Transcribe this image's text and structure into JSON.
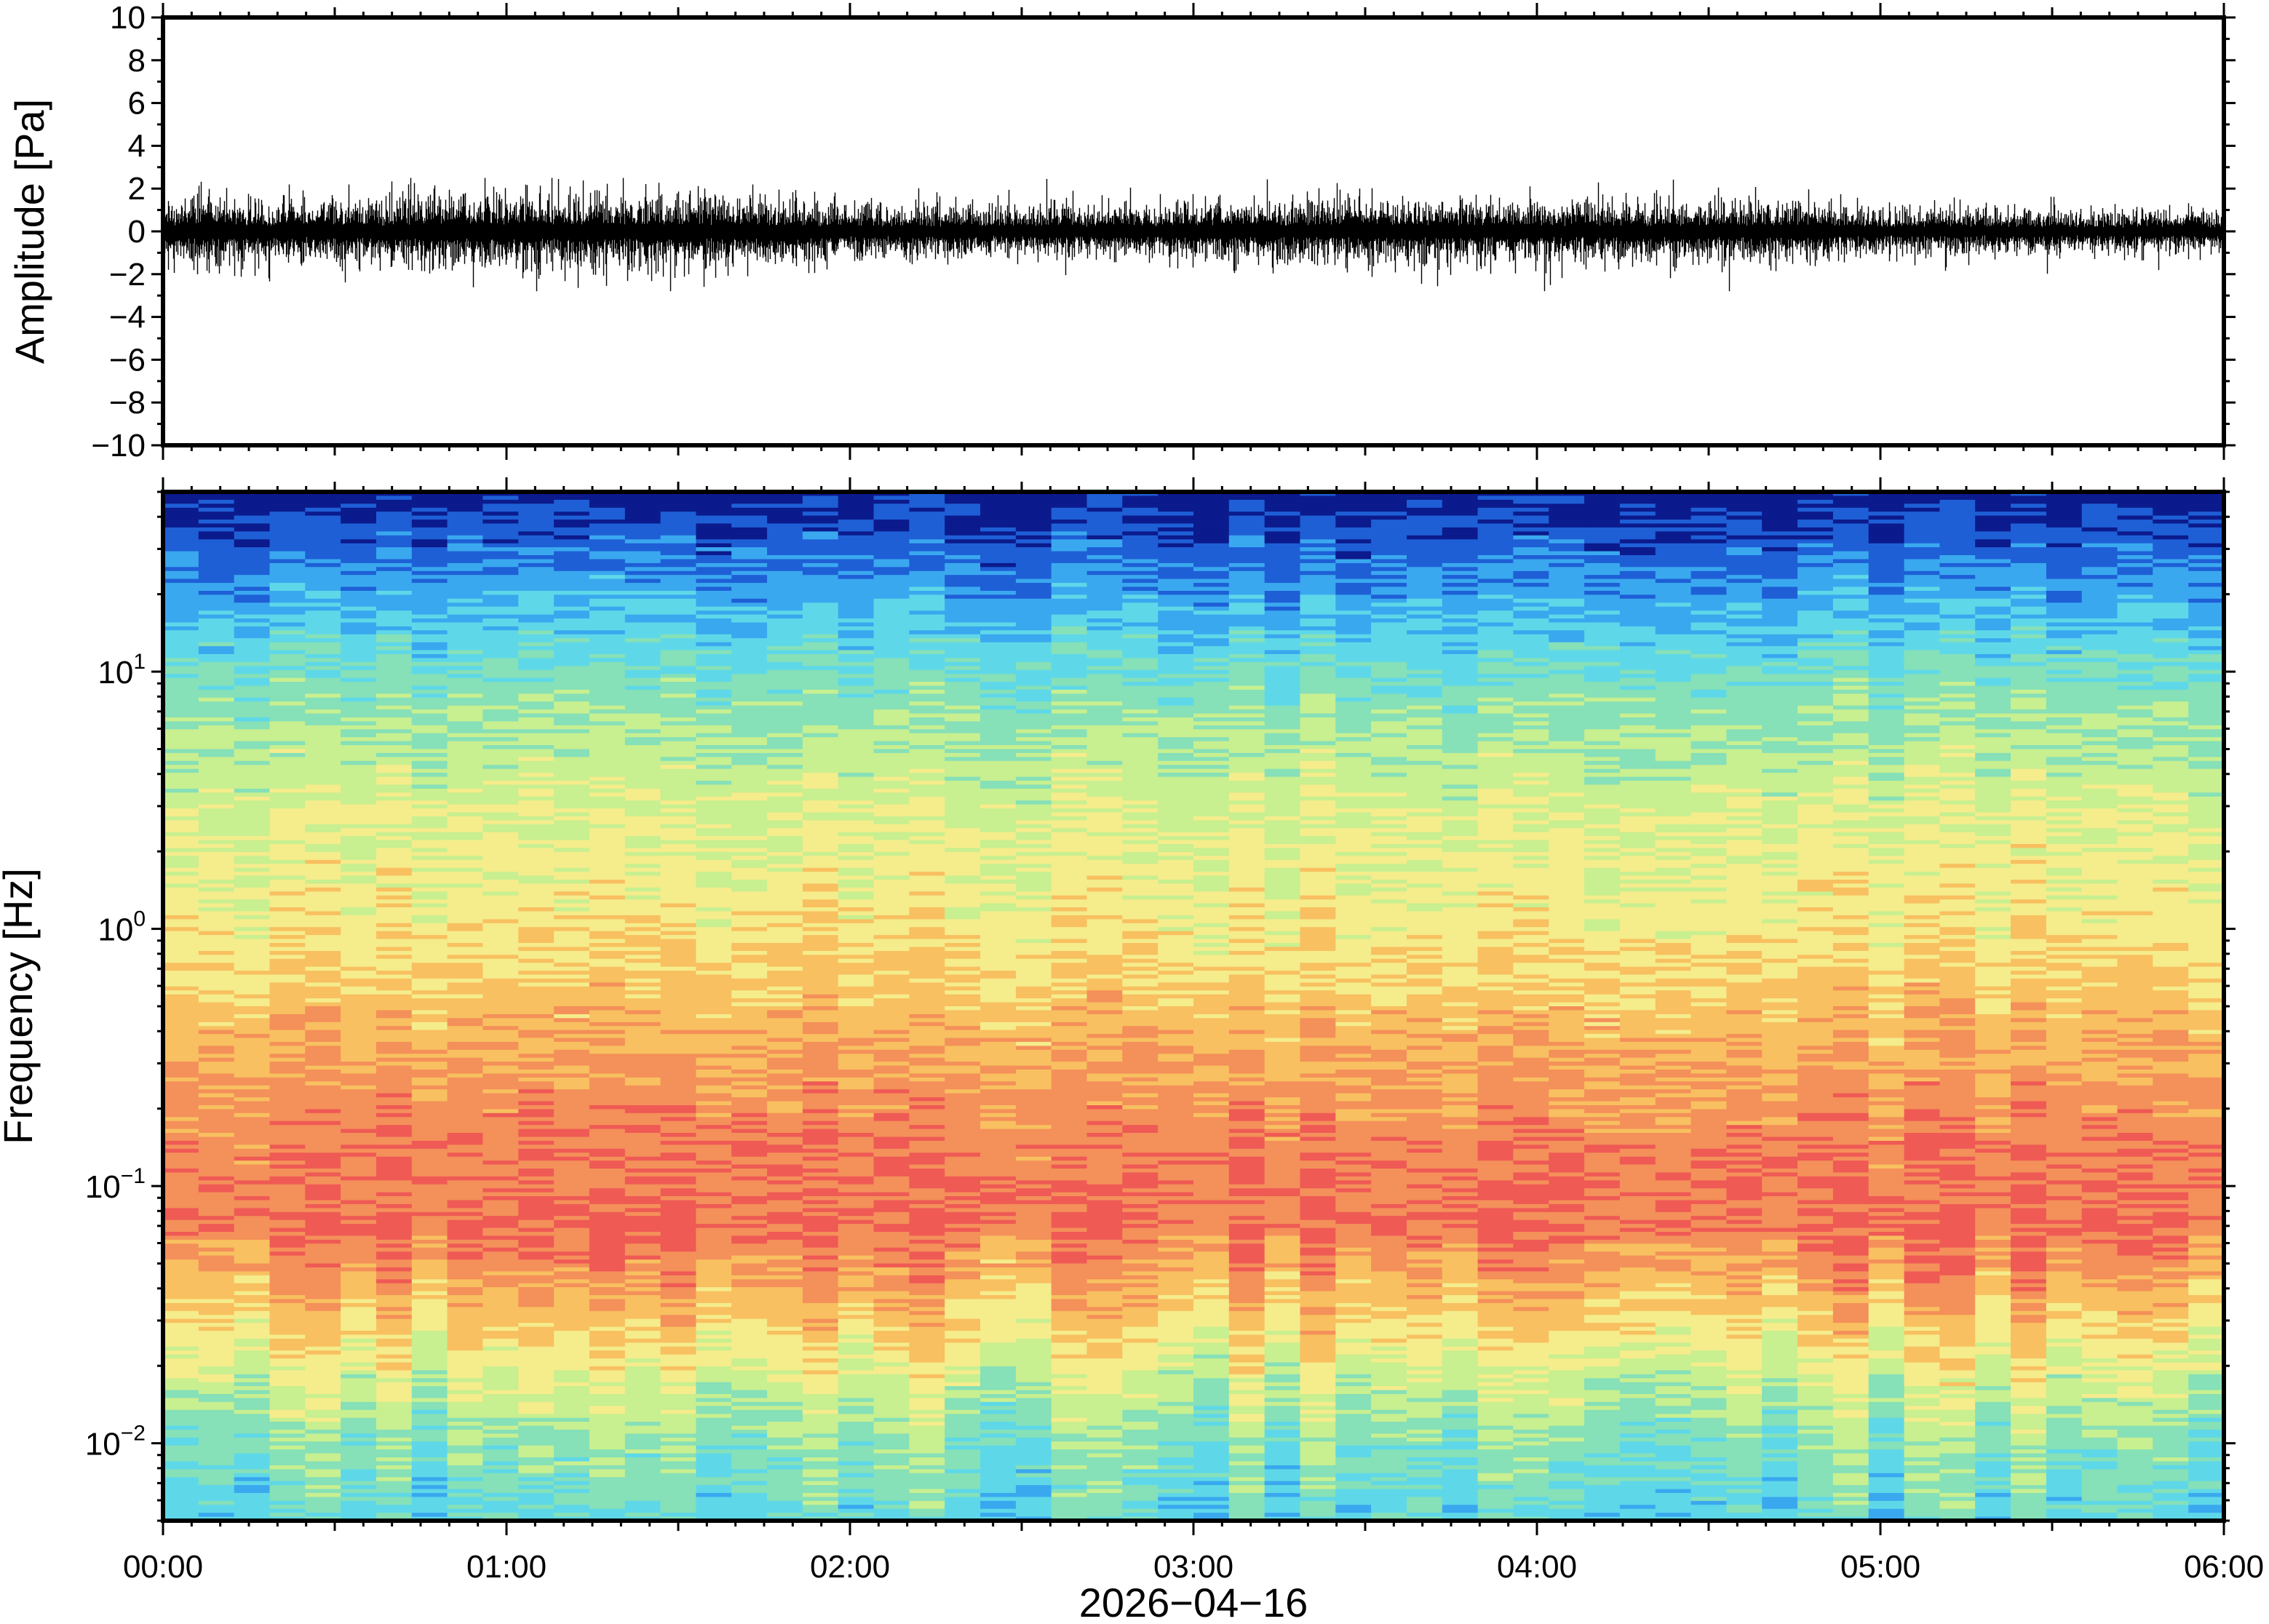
{
  "chart_data": [
    {
      "type": "line",
      "panel": "waveform",
      "ylabel": "Amplitude [Pa]",
      "ylim": [
        -10,
        10
      ],
      "yticks": [
        -10,
        -8,
        -6,
        -4,
        -2,
        0,
        2,
        4,
        6,
        8,
        10
      ],
      "ytick_labels": [
        "−10",
        "−8",
        "−6",
        "−4",
        "−2",
        "0",
        "2",
        "4",
        "6",
        "8",
        "10"
      ],
      "x_range_hours": [
        0,
        6
      ],
      "signal": {
        "mean": 0,
        "typical_peak": 1.5,
        "max_peak": 2.5,
        "segments_hours": [
          0,
          0.5,
          1,
          1.5,
          2,
          2.5,
          3,
          3.5,
          4,
          4.5,
          5,
          5.5,
          6
        ],
        "envelope": [
          1.4,
          1.3,
          1.6,
          1.5,
          1.1,
          1.0,
          1.2,
          1.3,
          1.2,
          1.3,
          1.0,
          0.9,
          0.9
        ]
      }
    },
    {
      "type": "heatmap",
      "panel": "spectrogram",
      "ylabel": "Frequency [Hz]",
      "xlabel": "2026−04−16",
      "yscale": "log",
      "ylim": [
        0.005,
        50
      ],
      "yticks": [
        {
          "value": 0.01,
          "base": "10",
          "exp": "−2"
        },
        {
          "value": 0.1,
          "base": "10",
          "exp": "−1"
        },
        {
          "value": 1,
          "base": "10",
          "exp": "0"
        },
        {
          "value": 10,
          "base": "10",
          "exp": "1"
        }
      ],
      "xticks": [
        {
          "hour": 0,
          "label": "00:00"
        },
        {
          "hour": 1,
          "label": "01:00"
        },
        {
          "hour": 2,
          "label": "02:00"
        },
        {
          "hour": 3,
          "label": "03:00"
        },
        {
          "hour": 4,
          "label": "04:00"
        },
        {
          "hour": 5,
          "label": "05:00"
        },
        {
          "hour": 6,
          "label": "06:00"
        }
      ],
      "colormap": "spectral",
      "colors": [
        "#0b1a8c",
        "#1e5fd6",
        "#3aa8ef",
        "#5ed8e8",
        "#86e0b8",
        "#c8ef90",
        "#f5ec8c",
        "#f8c060",
        "#f4905a",
        "#ef5a55"
      ],
      "level_profile": [
        {
          "freq": 50,
          "level": 0.0
        },
        {
          "freq": 30,
          "level": 0.12
        },
        {
          "freq": 15,
          "level": 0.3
        },
        {
          "freq": 8,
          "level": 0.45
        },
        {
          "freq": 3,
          "level": 0.6
        },
        {
          "freq": 1,
          "level": 0.68
        },
        {
          "freq": 0.4,
          "level": 0.8
        },
        {
          "freq": 0.15,
          "level": 0.92
        },
        {
          "freq": 0.07,
          "level": 0.95
        },
        {
          "freq": 0.035,
          "level": 0.78
        },
        {
          "freq": 0.02,
          "level": 0.62
        },
        {
          "freq": 0.01,
          "level": 0.45
        },
        {
          "freq": 0.005,
          "level": 0.35
        }
      ]
    }
  ]
}
